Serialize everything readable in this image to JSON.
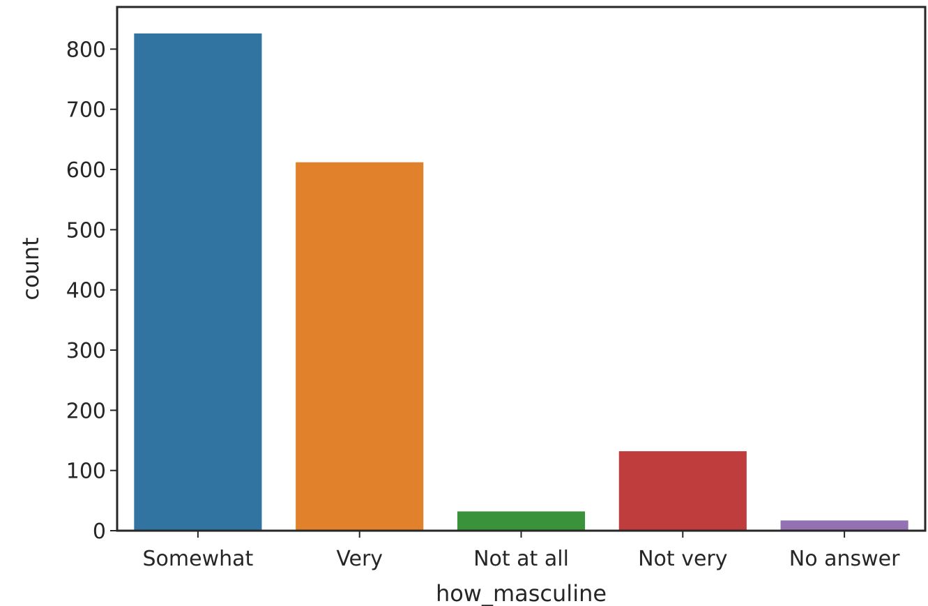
{
  "chart_data": {
    "type": "bar",
    "title": "",
    "xlabel": "how_masculine",
    "ylabel": "count",
    "categories": [
      "Somewhat",
      "Very",
      "Not at all",
      "Not very",
      "No answer"
    ],
    "values": [
      826,
      612,
      32,
      132,
      17
    ],
    "colors": [
      "#3274a1",
      "#e1812c",
      "#3a923a",
      "#c03d3e",
      "#9372b2"
    ],
    "ylim": [
      0,
      870
    ],
    "yticks": [
      0,
      100,
      200,
      300,
      400,
      500,
      600,
      700,
      800
    ],
    "grid": false,
    "legend": "none"
  }
}
